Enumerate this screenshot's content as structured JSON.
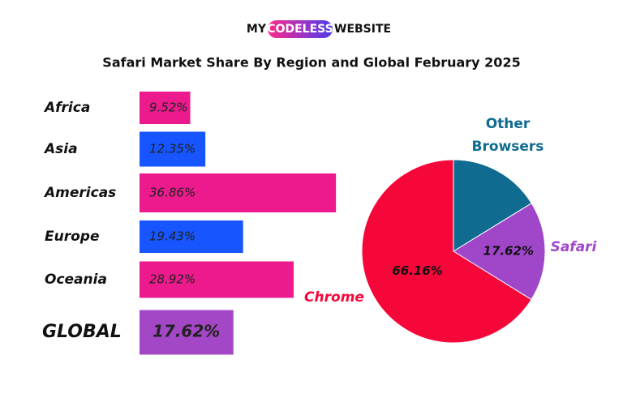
{
  "logo": [
    "MY",
    "CODELESS",
    "WEBSITE"
  ],
  "title": "Safari Market Share By Region and Global February 2025",
  "chart_data": [
    {
      "type": "bar",
      "categories": [
        "Africa",
        "Asia",
        "Americas",
        "Europe",
        "Oceania",
        "GLOBAL"
      ],
      "values": [
        9.52,
        12.35,
        36.86,
        19.43,
        28.92,
        17.62
      ],
      "value_labels": [
        "9.52%",
        "12.35%",
        "36.86%",
        "19.43%",
        "28.92%",
        "17.62%"
      ],
      "colors": [
        "#ec1a8c",
        "#1655ff",
        "#ec1a8c",
        "#1655ff",
        "#ec1a8c",
        "#a447c6"
      ]
    },
    {
      "type": "pie",
      "categories": [
        "Other Browsers",
        "Safari",
        "Chrome"
      ],
      "values": [
        16.22,
        17.62,
        66.16
      ],
      "value_labels": [
        null,
        "17.62%",
        "66.16%"
      ],
      "colors": [
        "#0f6b8f",
        "#a046c8",
        "#f5073a"
      ]
    }
  ]
}
